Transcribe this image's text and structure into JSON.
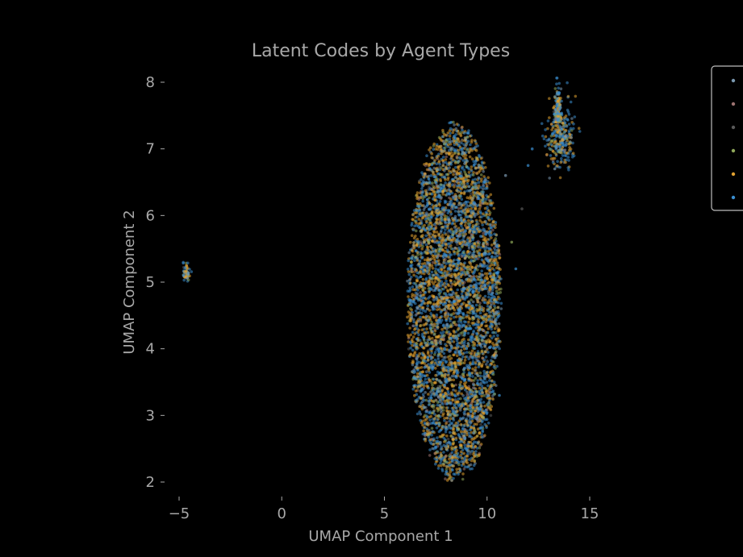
{
  "chart_data": {
    "type": "scatter",
    "title": "Latent Codes by Agent Types",
    "xlabel": "UMAP Component 1",
    "ylabel": "UMAP Component 2",
    "xlim": [
      -5.5,
      19.5
    ],
    "ylim": [
      1.8,
      8.3
    ],
    "xticks": [
      -5,
      0,
      5,
      10,
      15
    ],
    "xtick_labels": [
      "−5",
      "0",
      "5",
      "10",
      "15"
    ],
    "yticks": [
      2,
      3,
      4,
      5,
      6,
      7,
      8
    ],
    "ytick_labels": [
      "2",
      "3",
      "4",
      "5",
      "6",
      "7",
      "8"
    ],
    "grid": false,
    "legend_position": "top-right (clipped)",
    "background": "#000000",
    "text_color": "#a8a8a8",
    "series": [
      {
        "color": "#7a98b0"
      },
      {
        "color": "#9c7270"
      },
      {
        "color": "#5a5a5a"
      },
      {
        "color": "#8fa85a"
      },
      {
        "color": "#e0a030"
      },
      {
        "color": "#3a8ed0"
      }
    ],
    "clusters": [
      {
        "center_x": 8.5,
        "center_y": 4.7,
        "spread_x": 1.15,
        "spread_y": 1.25,
        "points": 4800
      },
      {
        "center_x": 13.6,
        "center_y": 7.15,
        "spread_x": 0.35,
        "spread_y": 0.22,
        "points": 420
      },
      {
        "center_x": -4.65,
        "center_y": 5.15,
        "spread_x": 0.07,
        "spread_y": 0.07,
        "points": 60
      }
    ]
  }
}
